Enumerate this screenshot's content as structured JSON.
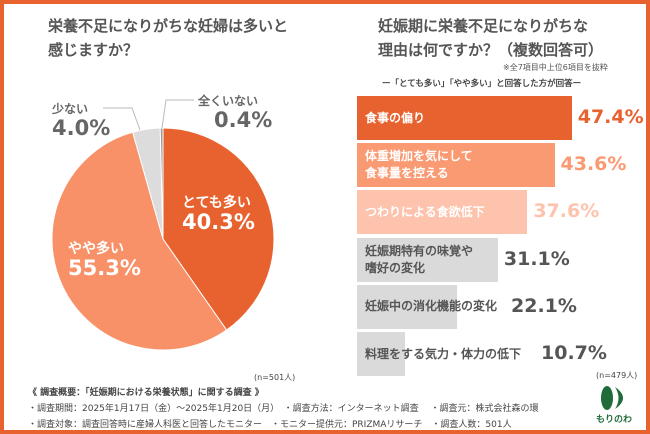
{
  "colors": {
    "frame": "#e8622f",
    "very_many": "#e8622f",
    "somewhat": "#f89068",
    "few": "#dcdcdc",
    "none": "#9a9a9a",
    "bar1": "#e8622f",
    "bar2": "#fa9a72",
    "bar3": "#fdc3ac",
    "bar_gray": "#dadada",
    "text_gray": "#555555",
    "logo": "#1f6b3a"
  },
  "left": {
    "title_line1": "栄養不足になりがちな妊婦は多いと",
    "title_line2": "感じますか？",
    "n": "(n=501人)"
  },
  "right": {
    "title_line1": "妊娠期に栄養不足になりがちな",
    "title_line2": "理由は何ですか？（複数回答可）",
    "note": "※全7項目中上位6項目を抜粋",
    "subtitle": "ー「とても多い」「やや多い」と回答した方が回答ー",
    "n": "(n=479人)"
  },
  "chart_data": [
    {
      "type": "pie",
      "start": "12 o'clock",
      "direction": "clockwise",
      "slices": [
        {
          "label": "とても多い",
          "value": 40.3,
          "display": "40.3%"
        },
        {
          "label": "やや多い",
          "value": 55.3,
          "display": "55.3%"
        },
        {
          "label": "少ない",
          "value": 4.0,
          "display": "4.0%"
        },
        {
          "label": "全くいない",
          "value": 0.4,
          "display": "0.4%"
        }
      ]
    },
    {
      "type": "bar",
      "orientation": "horizontal",
      "categories": [
        "食事の偏り",
        "体重増加を気にして\n食事量を控える",
        "つわりによる食欲低下",
        "妊娠期特有の味覚や\n嗜好の変化",
        "妊娠中の消化機能の変化",
        "料理をする気力・体力の低下"
      ],
      "values": [
        47.4,
        43.6,
        37.6,
        31.1,
        22.1,
        10.7
      ],
      "labels": [
        "47.4%",
        "43.6%",
        "37.6%",
        "31.1%",
        "22.1%",
        "10.7%"
      ]
    }
  ],
  "footer": {
    "line1": "《 調査概要：「妊娠期における栄養状態」に関する調査 》",
    "line2": "・調査期間：2025年1月17日（金）～2025年1月20日（月）　・調査方法：インターネット調査　 ・調査元：株式会社森の環",
    "line3": "・調査対象：調査回答時に産婦人科医と回答したモニター　・モニター提供元：PRIZMAリサーチ　・調査人数：501人"
  },
  "logo": {
    "text": "もりのわ"
  }
}
